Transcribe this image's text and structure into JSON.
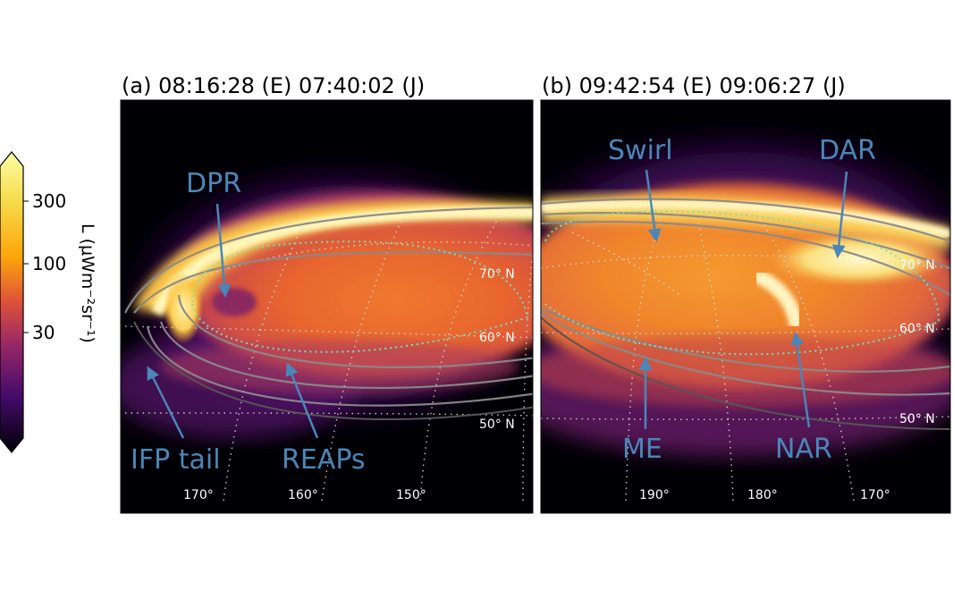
{
  "panels": [
    {
      "title": "(a) 08:16:28 (E) 07:40:02 (J)",
      "annotations": [
        "DPR",
        "IFP tail",
        "REAPs"
      ],
      "lat_labels": [
        "70° N",
        "60° N",
        "50° N"
      ],
      "lon_labels": [
        "170°",
        "160°",
        "150°"
      ]
    },
    {
      "title": "(b) 09:42:54 (E) 09:06:27 (J)",
      "annotations": [
        "Swirl",
        "DAR",
        "ME",
        "NAR"
      ],
      "lat_labels": [
        "70° N",
        "60° N",
        "50° N"
      ],
      "lon_labels": [
        "190°",
        "180°",
        "170°"
      ]
    }
  ],
  "colorbar": {
    "ticks": [
      "300",
      "100",
      "30"
    ],
    "label": "L (μWm⁻²sr⁻¹)",
    "colors": [
      "#fcffa4",
      "#fca50a",
      "#dd513a",
      "#932667",
      "#420a68",
      "#000004"
    ]
  },
  "colors": {
    "annotation": "#4a86b8",
    "grid": "#dddddd",
    "oval_gray": "#8a8a8a",
    "footprint_cyan": "#6fe0c8"
  }
}
